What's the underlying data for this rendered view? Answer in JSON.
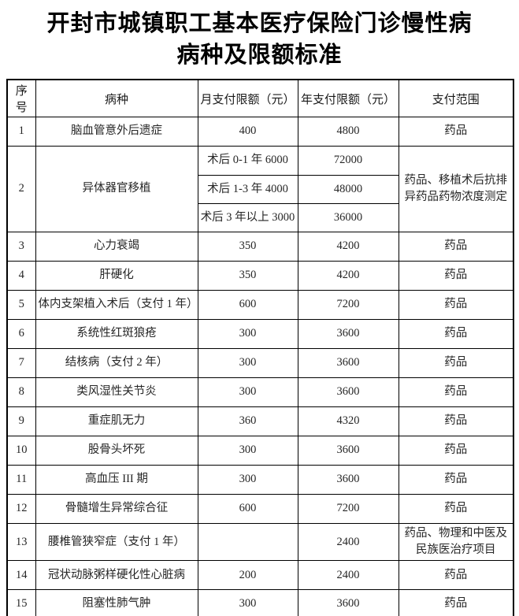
{
  "palette": {
    "background": "#ffffff",
    "border": "#000000",
    "title_text": "#000000",
    "body_text": "#262626"
  },
  "title": {
    "line1": "开封市城镇职工基本医疗保险门诊慢性病",
    "line2": "病种及限额标准"
  },
  "table": {
    "headers": [
      "序号",
      "病种",
      "月支付限额（元）",
      "年支付限额（元）",
      "支付范围"
    ],
    "rows": [
      {
        "no": "1",
        "disease": "脑血管意外后遗症",
        "monthly": "400",
        "yearly": "4800",
        "scope": "药品"
      },
      {
        "no": "2",
        "disease": "异体器官移植",
        "sub_rows": [
          {
            "monthly": "术后 0-1 年 6000",
            "yearly": "72000"
          },
          {
            "monthly": "术后 1-3 年 4000",
            "yearly": "48000"
          },
          {
            "monthly": "术后 3 年以上 3000",
            "yearly": "36000"
          }
        ],
        "scope": "药品、移植术后抗排异药品药物浓度测定"
      },
      {
        "no": "3",
        "disease": "心力衰竭",
        "monthly": "350",
        "yearly": "4200",
        "scope": "药品"
      },
      {
        "no": "4",
        "disease": "肝硬化",
        "monthly": "350",
        "yearly": "4200",
        "scope": "药品"
      },
      {
        "no": "5",
        "disease": "体内支架植入术后（支付 1 年）",
        "monthly": "600",
        "yearly": "7200",
        "scope": "药品"
      },
      {
        "no": "6",
        "disease": "系统性红斑狼疮",
        "monthly": "300",
        "yearly": "3600",
        "scope": "药品"
      },
      {
        "no": "7",
        "disease": "结核病（支付 2 年）",
        "monthly": "300",
        "yearly": "3600",
        "scope": "药品"
      },
      {
        "no": "8",
        "disease": "类风湿性关节炎",
        "monthly": "300",
        "yearly": "3600",
        "scope": "药品"
      },
      {
        "no": "9",
        "disease": "重症肌无力",
        "monthly": "360",
        "yearly": "4320",
        "scope": "药品"
      },
      {
        "no": "10",
        "disease": "股骨头坏死",
        "monthly": "300",
        "yearly": "3600",
        "scope": "药品"
      },
      {
        "no": "11",
        "disease": "高血压 III 期",
        "monthly": "300",
        "yearly": "3600",
        "scope": "药品"
      },
      {
        "no": "12",
        "disease": "骨髓增生异常综合征",
        "monthly": "600",
        "yearly": "7200",
        "scope": "药品"
      },
      {
        "no": "13",
        "disease": "腰椎管狭窄症（支付 1 年）",
        "monthly": "",
        "yearly": "2400",
        "scope": "药品、物理和中医及民族医治疗项目"
      },
      {
        "no": "14",
        "disease": "冠状动脉粥样硬化性心脏病",
        "monthly": "200",
        "yearly": "2400",
        "scope": "药品"
      },
      {
        "no": "15",
        "disease": "阻塞性肺气肿",
        "monthly": "300",
        "yearly": "3600",
        "scope": "药品"
      }
    ]
  }
}
